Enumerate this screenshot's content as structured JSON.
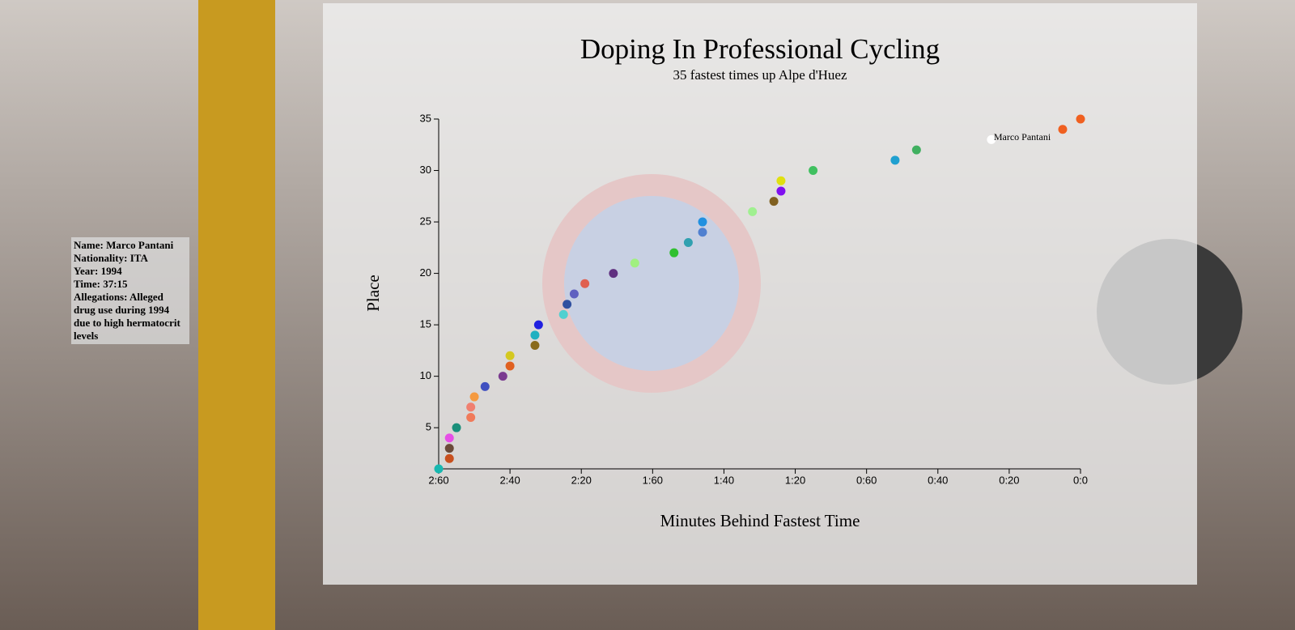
{
  "chart_data": {
    "type": "scatter",
    "title": "Doping In Professional Cycling",
    "subtitle": "35 fastest times up Alpe d'Huez",
    "x_label": "Minutes Behind Fastest Time",
    "y_label": "Place",
    "x": [
      180,
      177,
      177,
      177,
      175,
      171,
      171,
      170,
      167,
      162,
      160,
      160,
      153,
      153,
      152,
      145,
      144,
      142,
      139,
      131,
      125,
      114,
      110,
      106,
      106,
      92,
      86,
      84,
      84,
      75,
      52,
      46,
      25,
      5,
      0
    ],
    "series": [
      {
        "values": [
          1,
          2,
          3,
          4,
          5,
          6,
          7,
          8,
          9,
          10,
          11,
          12,
          13,
          14,
          15,
          16,
          17,
          18,
          19,
          20,
          21,
          22,
          23,
          24,
          25,
          26,
          27,
          28,
          29,
          30,
          31,
          32,
          33,
          34,
          35
        ],
        "colors": [
          "#17b8b0",
          "#c8501e",
          "#6b4a3a",
          "#e64ee6",
          "#1a8f7a",
          "#f07a5a",
          "#f08070",
          "#f59a40",
          "#4050c0",
          "#7a3a90",
          "#e06020",
          "#d4c820",
          "#8a6a1a",
          "#20b0c0",
          "#2020e0",
          "#50d0d0",
          "#3050a0",
          "#6060c0",
          "#e06050",
          "#603080",
          "#a0f080",
          "#30c030",
          "#30a0b0",
          "#5080d0",
          "#2090e0",
          "#a0f090",
          "#806020",
          "#8010f0",
          "#e0e010",
          "#40c060",
          "#20a0d0",
          "#40b060",
          "#ffffff",
          "#f06020",
          "#f06020"
        ],
        "point_labels": [
          null,
          null,
          null,
          null,
          null,
          null,
          null,
          null,
          null,
          null,
          null,
          null,
          null,
          null,
          null,
          null,
          null,
          null,
          null,
          null,
          null,
          null,
          null,
          null,
          null,
          null,
          null,
          null,
          null,
          null,
          null,
          null,
          "Marco Pantani",
          null,
          null
        ]
      }
    ],
    "xlim": [
      180,
      0
    ],
    "xticks": [
      {
        "value": 180,
        "label": "2:60"
      },
      {
        "value": 160,
        "label": "2:40"
      },
      {
        "value": 140,
        "label": "2:20"
      },
      {
        "value": 120,
        "label": "1:60"
      },
      {
        "value": 100,
        "label": "1:40"
      },
      {
        "value": 80,
        "label": "1:20"
      },
      {
        "value": 60,
        "label": "0:60"
      },
      {
        "value": 40,
        "label": "0:40"
      },
      {
        "value": 20,
        "label": "0:20"
      },
      {
        "value": 0,
        "label": "0:0"
      }
    ],
    "ylim": [
      1,
      35
    ],
    "yticks": [
      5,
      10,
      15,
      20,
      25,
      30,
      35
    ]
  },
  "tooltip": {
    "lines": [
      "Name: Marco Pantani",
      "Nationality: ITA",
      "Year: 1994",
      "Time: 37:15",
      "Allegations: Alleged drug use during 1994 due to high hermatocrit levels"
    ]
  }
}
